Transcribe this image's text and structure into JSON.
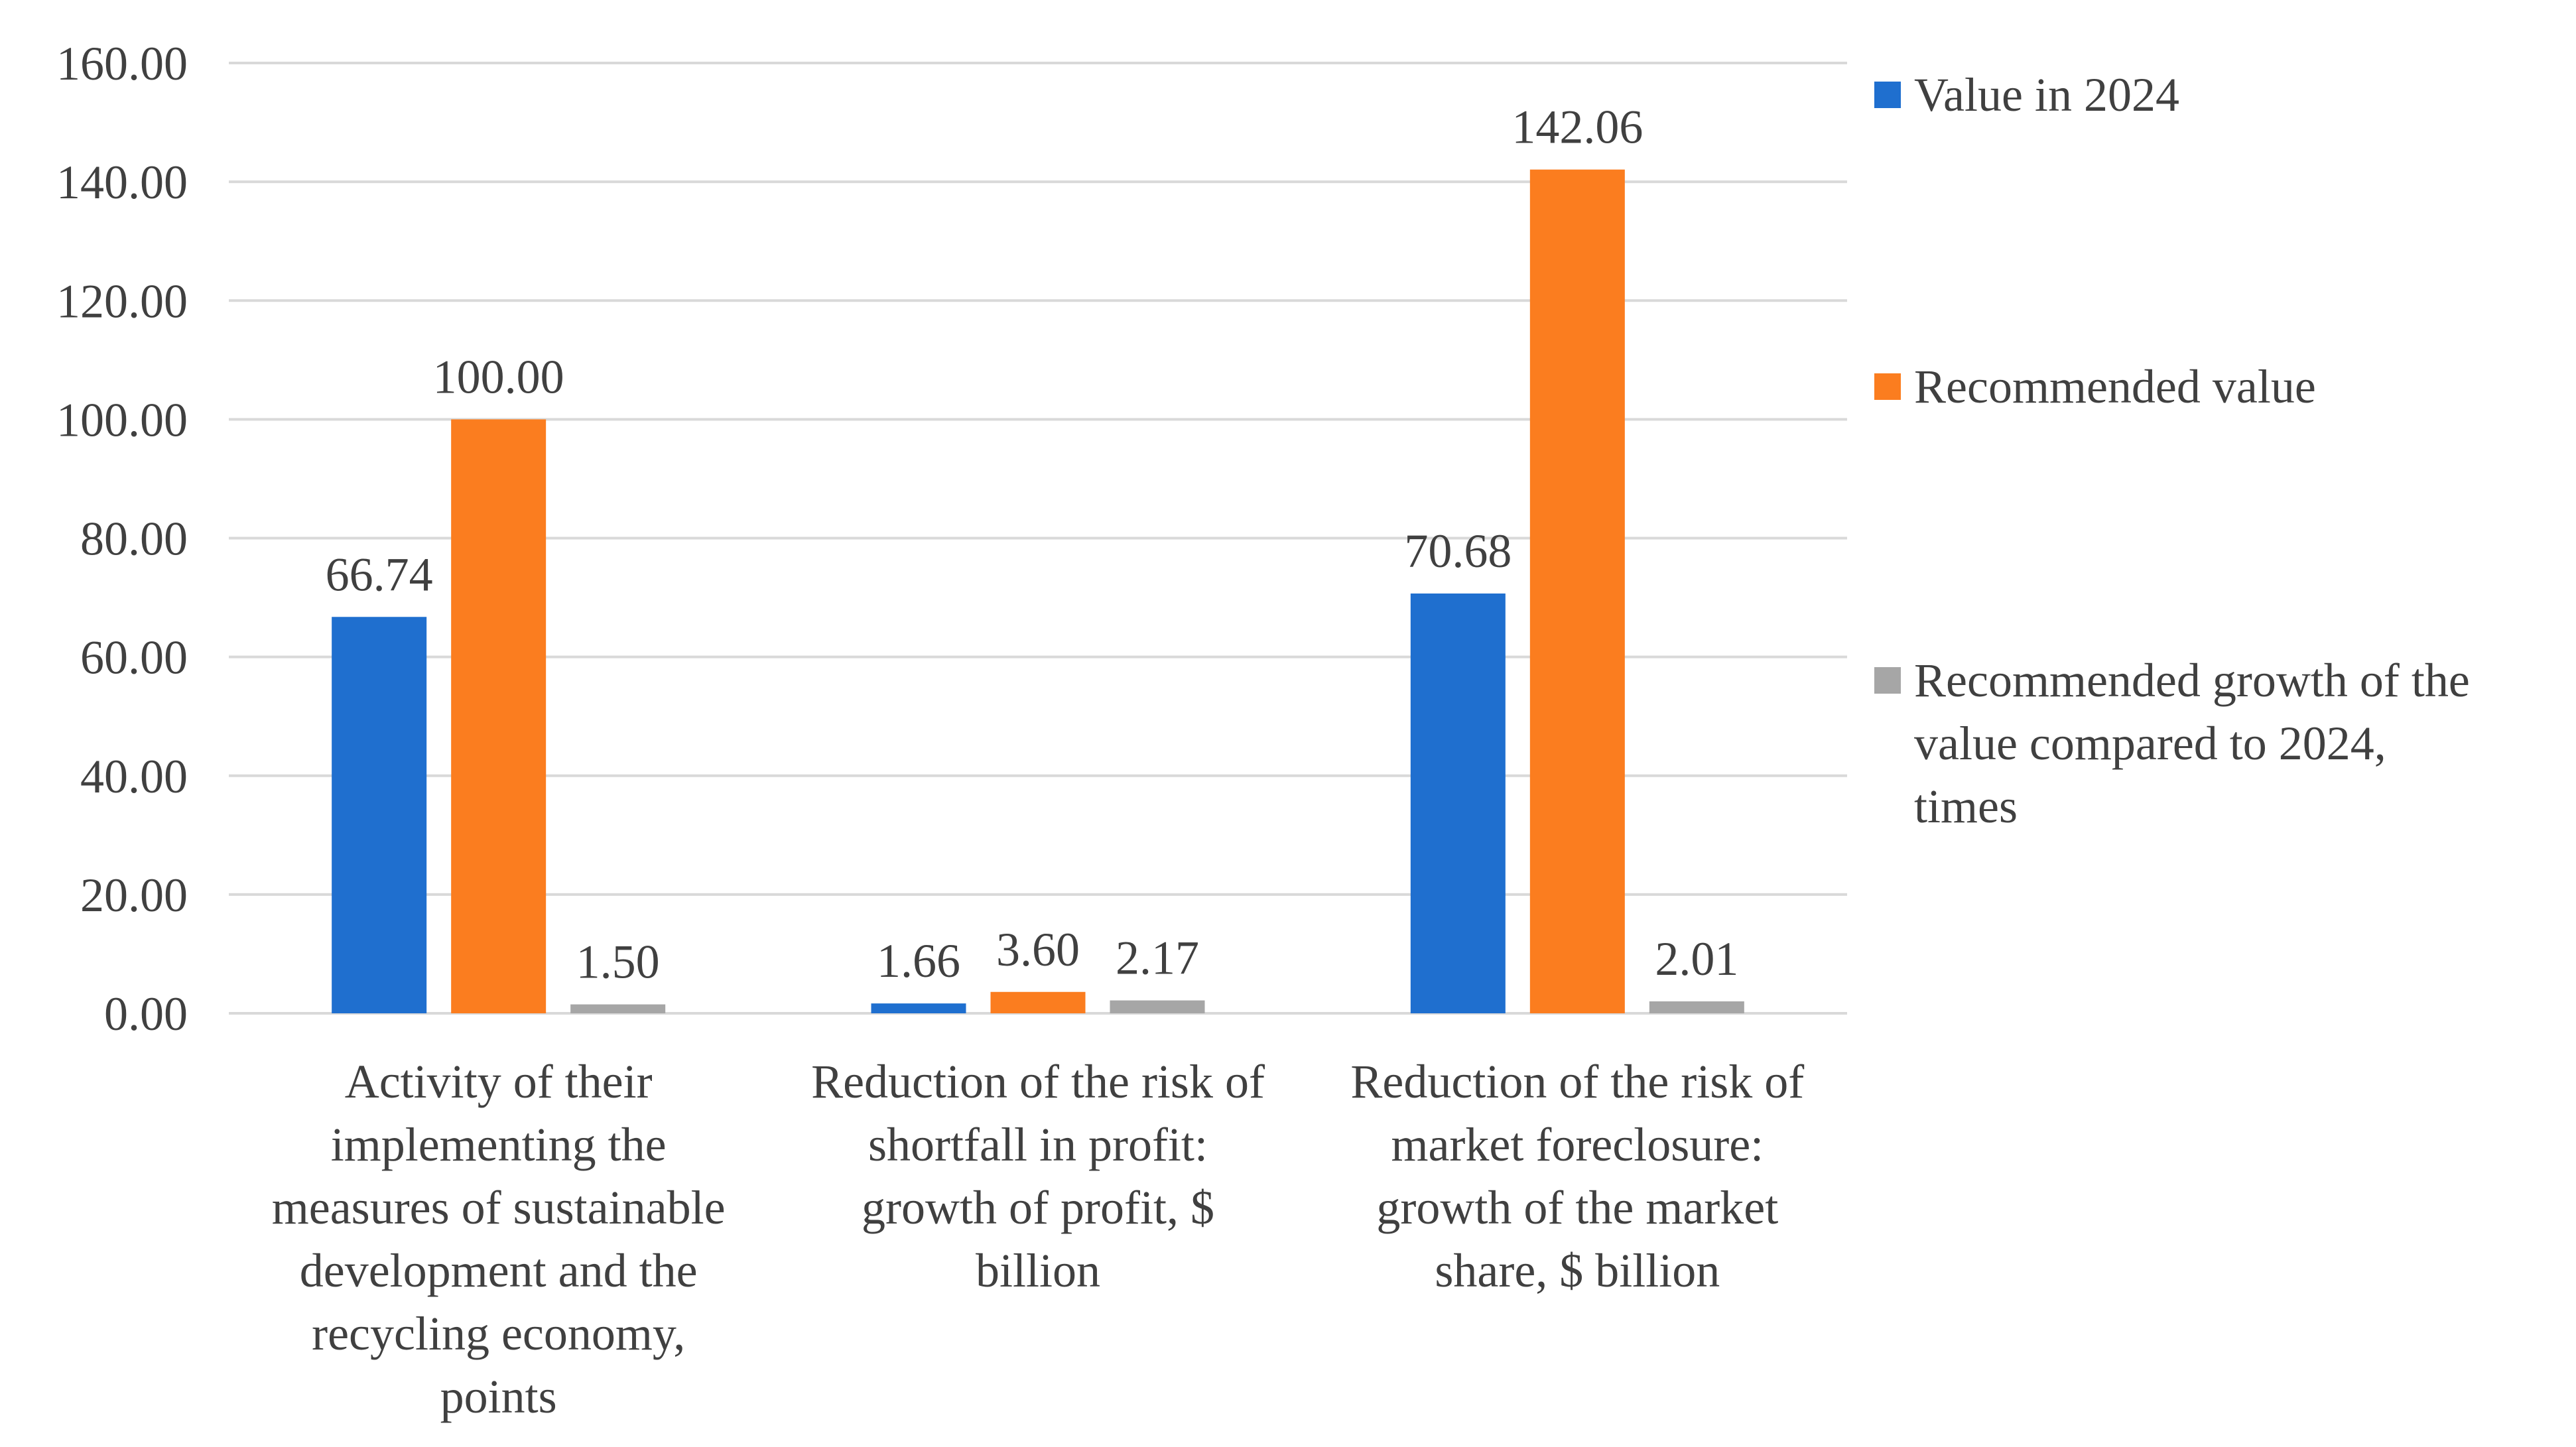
{
  "chart_data": {
    "type": "bar",
    "title": "",
    "xlabel": "",
    "ylabel": "",
    "ylim": [
      0,
      160
    ],
    "yticks": [
      "0.00",
      "20.00",
      "40.00",
      "60.00",
      "80.00",
      "100.00",
      "120.00",
      "140.00",
      "160.00"
    ],
    "grid": true,
    "legend_position": "right",
    "categories": [
      [
        "Activity of their",
        "implementing the",
        "measures of sustainable",
        "development and the",
        "recycling economy,",
        "points"
      ],
      [
        "Reduction of the risk of",
        "shortfall in profit:",
        "growth of profit, $",
        "billion"
      ],
      [
        "Reduction of the risk of",
        "market foreclosure:",
        "growth of the market",
        "share, $ billion"
      ]
    ],
    "series": [
      {
        "name": [
          "Value in 2024"
        ],
        "color": "#1f6fcf",
        "values": [
          66.74,
          1.66,
          70.68
        ],
        "labels": [
          "66.74",
          "1.66",
          "70.68"
        ]
      },
      {
        "name": [
          "Recommended value"
        ],
        "color": "#fb7d1f",
        "values": [
          100.0,
          3.6,
          142.06
        ],
        "labels": [
          "100.00",
          "3.60",
          "142.06"
        ]
      },
      {
        "name": [
          "Recommended growth of the",
          "value compared to 2024,",
          "times"
        ],
        "color": "#a6a6a6",
        "values": [
          1.5,
          2.17,
          2.01
        ],
        "labels": [
          "1.50",
          "2.17",
          "2.01"
        ]
      }
    ]
  }
}
